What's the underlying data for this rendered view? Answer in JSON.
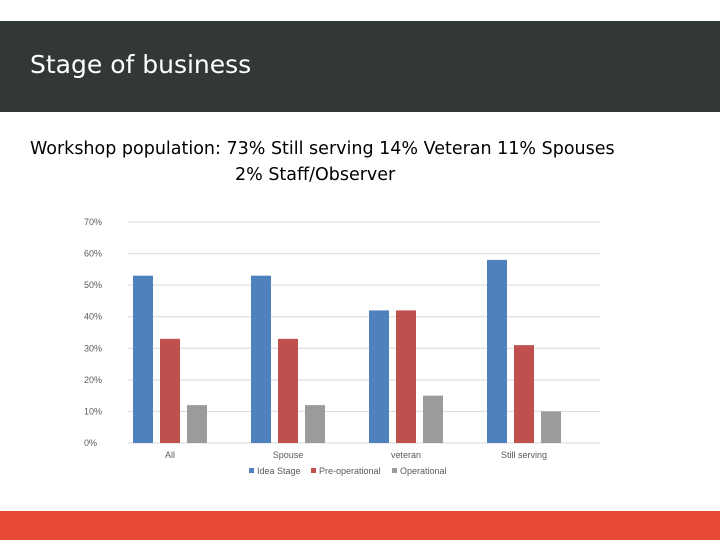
{
  "slide": {
    "title": "Stage of business",
    "subtitle_line1": "Workshop population: 73% Still serving  14% Veteran  11% Spouses",
    "subtitle_line2": "2% Staff/Observer"
  },
  "colors": {
    "header_bg": "#323838",
    "accent_bar": "#e64a34",
    "series": [
      "#4f81bd",
      "#c0504d",
      "#9b9b9b"
    ]
  },
  "chart_data": {
    "type": "bar",
    "title": "",
    "xlabel": "",
    "ylabel": "",
    "categories": [
      "All",
      "Spouse",
      "veteran",
      "Still serving"
    ],
    "series": [
      {
        "name": "Idea Stage",
        "values": [
          53,
          53,
          42,
          58
        ]
      },
      {
        "name": "Pre-operational",
        "values": [
          33,
          33,
          42,
          31
        ]
      },
      {
        "name": "Operational",
        "values": [
          12,
          12,
          15,
          10
        ]
      }
    ],
    "ylim": [
      0,
      70
    ],
    "yticks": [
      0,
      10,
      20,
      30,
      40,
      50,
      60,
      70
    ],
    "ytick_labels": [
      "0%",
      "10%",
      "20%",
      "30%",
      "40%",
      "50%",
      "60%",
      "70%"
    ],
    "grid": true,
    "legend": "bottom"
  }
}
